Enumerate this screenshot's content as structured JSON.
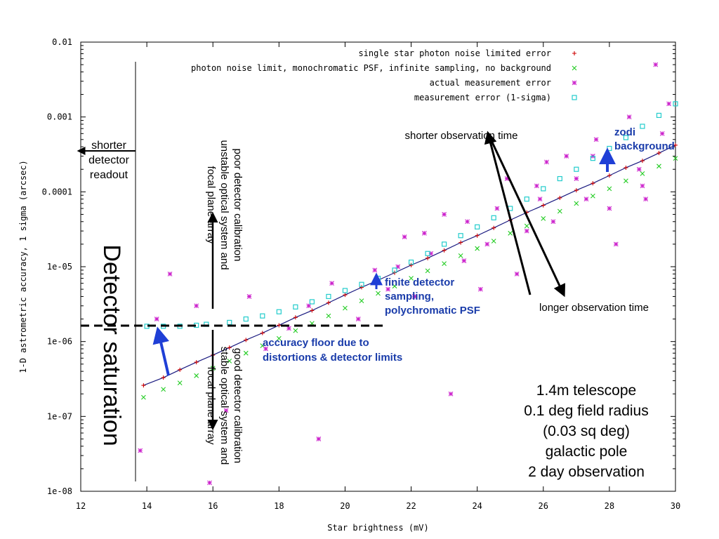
{
  "chart_data": {
    "type": "scatter",
    "xlabel": "Star brightness (mV)",
    "ylabel": "1-D astrometric accuracy, 1 sigma (arcsec)",
    "xlim": [
      12,
      30
    ],
    "ylim": [
      1e-08,
      0.01
    ],
    "yscale": "log",
    "x_ticks": [
      "12",
      "14",
      "16",
      "18",
      "20",
      "22",
      "24",
      "26",
      "28",
      "30"
    ],
    "y_ticks": [
      "0.01",
      "0.001",
      "0.0001",
      "1e-05",
      "1e-06",
      "1e-07",
      "1e-08"
    ],
    "legend_position": "top-right",
    "series": [
      {
        "name": "single star photon noise limited error",
        "color": "#cc0000",
        "marker": "plus",
        "x": [
          13.9,
          14.5,
          15.0,
          15.5,
          16.0,
          16.5,
          17.0,
          17.5,
          18.0,
          18.5,
          19.0,
          19.5,
          20.0,
          20.5,
          21.0,
          21.5,
          22.0,
          22.5,
          23.0,
          23.5,
          24.0,
          24.5,
          25.0,
          25.5,
          26.0,
          26.5,
          27.0,
          27.5,
          28.0,
          28.5,
          29.0,
          29.5,
          30.0
        ],
        "values": [
          2.6e-07,
          3.3e-07,
          4.2e-07,
          5.3e-07,
          6.6e-07,
          8.3e-07,
          1.05e-06,
          1.3e-06,
          1.65e-06,
          2.1e-06,
          2.6e-06,
          3.3e-06,
          4.2e-06,
          5.3e-06,
          6.6e-06,
          8.3e-06,
          1.05e-05,
          1.3e-05,
          1.65e-05,
          2.1e-05,
          2.6e-05,
          3.3e-05,
          4.2e-05,
          5.3e-05,
          6.6e-05,
          8.3e-05,
          0.000105,
          0.00013,
          0.000165,
          0.00021,
          0.00026,
          0.00033,
          0.00042
        ]
      },
      {
        "name": "photon noise limit, monochromatic PSF, infinite sampling, no background",
        "color": "#22cc22",
        "marker": "cross",
        "x": [
          13.9,
          14.5,
          15.0,
          15.5,
          16.0,
          16.5,
          17.0,
          17.5,
          18.0,
          18.5,
          19.0,
          19.5,
          20.0,
          20.5,
          21.0,
          21.5,
          22.0,
          22.5,
          23.0,
          23.5,
          24.0,
          24.5,
          25.0,
          25.5,
          26.0,
          26.5,
          27.0,
          27.5,
          28.0,
          28.5,
          29.0,
          29.5,
          30.0
        ],
        "values": [
          1.8e-07,
          2.3e-07,
          2.8e-07,
          3.5e-07,
          4.4e-07,
          5.5e-07,
          7e-07,
          8.8e-07,
          1.1e-06,
          1.4e-06,
          1.75e-06,
          2.2e-06,
          2.8e-06,
          3.5e-06,
          4.4e-06,
          5.5e-06,
          7e-06,
          8.8e-06,
          1.1e-05,
          1.4e-05,
          1.75e-05,
          2.2e-05,
          2.8e-05,
          3.5e-05,
          4.4e-05,
          5.5e-05,
          7e-05,
          8.8e-05,
          0.00011,
          0.00014,
          0.000175,
          0.00022,
          0.00028
        ]
      },
      {
        "name": "actual measurement error",
        "color": "#cc22cc",
        "marker": "star",
        "x": [
          13.8,
          14.3,
          14.7,
          15.5,
          15.9,
          16.4,
          17.1,
          17.6,
          18.3,
          18.9,
          19.2,
          19.6,
          20.4,
          20.9,
          21.3,
          21.8,
          22.1,
          22.6,
          23.2,
          23.7,
          24.1,
          24.6,
          25.2,
          25.8,
          26.3,
          26.7,
          27.3,
          27.6,
          28.2,
          28.6,
          29.1,
          29.4,
          29.8,
          22.4,
          23.6,
          24.9,
          25.5,
          26.1,
          27.0,
          28.0,
          28.9,
          29.6,
          21.6,
          23.0,
          24.3,
          25.9,
          27.5,
          29.0
        ],
        "values": [
          3.5e-08,
          2e-06,
          8e-06,
          3e-06,
          1.3e-08,
          1.2e-07,
          4e-06,
          8e-07,
          1.5e-06,
          3e-06,
          5e-08,
          6e-06,
          2e-06,
          9e-06,
          5e-06,
          2.5e-05,
          4e-06,
          1.5e-05,
          2e-07,
          4e-05,
          5e-06,
          6e-05,
          8e-06,
          0.00012,
          4e-05,
          0.0003,
          8e-05,
          0.0005,
          2e-05,
          0.001,
          8e-05,
          0.005,
          0.0015,
          2.8e-05,
          1.2e-05,
          0.00015,
          3e-05,
          0.00025,
          0.00015,
          6e-05,
          0.0002,
          0.0006,
          1e-05,
          5e-05,
          2e-05,
          8e-05,
          0.0003,
          0.00012
        ]
      },
      {
        "name": "measurement error (1-sigma)",
        "color": "#22cccc",
        "marker": "square",
        "x": [
          14.0,
          14.5,
          15.0,
          15.5,
          15.8,
          16.5,
          17.0,
          17.5,
          18.0,
          18.5,
          19.0,
          19.5,
          20.0,
          20.5,
          21.0,
          21.5,
          22.0,
          22.5,
          23.0,
          23.5,
          24.0,
          24.5,
          25.0,
          25.5,
          26.0,
          26.5,
          27.0,
          27.5,
          28.0,
          28.5,
          29.0,
          29.5,
          30.0
        ],
        "values": [
          1.6e-06,
          1.6e-06,
          1.6e-06,
          1.65e-06,
          1.7e-06,
          1.8e-06,
          2e-06,
          2.2e-06,
          2.5e-06,
          2.9e-06,
          3.4e-06,
          4e-06,
          4.8e-06,
          5.8e-06,
          7e-06,
          9e-06,
          1.15e-05,
          1.5e-05,
          2e-05,
          2.6e-05,
          3.4e-05,
          4.5e-05,
          6e-05,
          8e-05,
          0.00011,
          0.00015,
          0.0002,
          0.00028,
          0.00038,
          0.00053,
          0.00075,
          0.00105,
          0.0015
        ]
      }
    ],
    "annotations": {
      "shorter_readout": "shorter\ndetector\nreadout",
      "detector_saturation": "Detector saturation",
      "poor_calibration": "poor detector calibration\nunstable optical system and\nfocal plane array",
      "good_calibration": "good detector calibration\nstable optical system and\nfocal plane array",
      "shorter_obs": "shorter observation time",
      "longer_obs": "longer observation time",
      "zodi": "zodi\nbackground",
      "finite_sampling": "finite detector\nsampling,\npolychromatic PSF",
      "accuracy_floor": "accuracy floor due to\ndistortions & detector limits",
      "telescope_info": "1.4m telescope\n0.1 deg field radius\n(0.03 sq deg)\ngalactic pole\n2 day observation"
    },
    "colors": {
      "annotation_blue": "#1a3caa",
      "arrow_blue": "#1f3fd6",
      "black": "#000000"
    }
  }
}
